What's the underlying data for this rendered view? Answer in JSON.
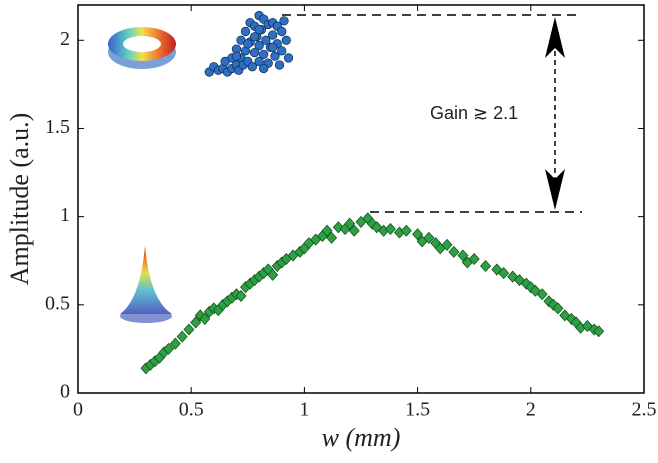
{
  "chart_data": {
    "type": "scatter",
    "xlabel": "w (mm)",
    "ylabel": "Amplitude (a.u.)",
    "annotation": "Gain ≳ 2.1",
    "xlim": [
      0,
      2.5
    ],
    "ylim": [
      0,
      2.2
    ],
    "xticks": [
      0,
      0.5,
      1,
      1.5,
      2,
      2.5
    ],
    "yticks": [
      0,
      0.5,
      1,
      1.5,
      2
    ],
    "grid": false,
    "series": [
      {
        "marker": "circle",
        "color": "#2e6fc0",
        "x": [
          0.58,
          0.6,
          0.62,
          0.64,
          0.65,
          0.66,
          0.68,
          0.68,
          0.7,
          0.7,
          0.71,
          0.72,
          0.72,
          0.73,
          0.74,
          0.74,
          0.75,
          0.76,
          0.76,
          0.77,
          0.78,
          0.78,
          0.79,
          0.8,
          0.8,
          0.8,
          0.81,
          0.82,
          0.82,
          0.83,
          0.84,
          0.84,
          0.85,
          0.86,
          0.86,
          0.87,
          0.88,
          0.88,
          0.89,
          0.9,
          0.9,
          0.91,
          0.92,
          0.93,
          0.78,
          0.82,
          0.75,
          0.86,
          0.7,
          0.8
        ],
        "values": [
          1.82,
          1.85,
          1.83,
          1.84,
          1.88,
          1.82,
          1.9,
          1.84,
          1.95,
          1.86,
          1.83,
          2.0,
          1.9,
          1.86,
          2.05,
          1.94,
          1.88,
          2.1,
          1.99,
          1.85,
          2.08,
          1.93,
          2.02,
          2.14,
          1.97,
          1.88,
          2.06,
          2.12,
          1.92,
          2.0,
          2.09,
          1.87,
          1.96,
          2.1,
          2.03,
          1.91,
          2.08,
          1.98,
          1.86,
          2.05,
          1.94,
          2.11,
          2.0,
          1.9,
          2.02,
          1.84,
          1.98,
          1.96,
          1.91,
          2.06
        ]
      },
      {
        "marker": "diamond",
        "color": "#2ea043",
        "x": [
          0.3,
          0.32,
          0.34,
          0.36,
          0.38,
          0.4,
          0.43,
          0.46,
          0.49,
          0.52,
          0.54,
          0.56,
          0.58,
          0.6,
          0.62,
          0.64,
          0.66,
          0.68,
          0.7,
          0.72,
          0.74,
          0.76,
          0.78,
          0.8,
          0.82,
          0.84,
          0.86,
          0.88,
          0.9,
          0.92,
          0.95,
          0.98,
          1.0,
          1.02,
          1.05,
          1.08,
          1.1,
          1.12,
          1.15,
          1.18,
          1.2,
          1.22,
          1.25,
          1.28,
          1.3,
          1.32,
          1.35,
          1.38,
          1.42,
          1.45,
          1.5,
          1.52,
          1.55,
          1.58,
          1.6,
          1.63,
          1.66,
          1.7,
          1.72,
          1.75,
          1.8,
          1.85,
          1.88,
          1.92,
          1.95,
          1.98,
          2.0,
          2.02,
          2.05,
          2.08,
          2.1,
          2.12,
          2.15,
          2.18,
          2.2,
          2.22,
          2.25,
          2.28,
          2.3
        ],
        "values": [
          0.14,
          0.16,
          0.18,
          0.2,
          0.23,
          0.25,
          0.28,
          0.32,
          0.36,
          0.4,
          0.44,
          0.42,
          0.46,
          0.48,
          0.47,
          0.5,
          0.52,
          0.54,
          0.56,
          0.55,
          0.6,
          0.62,
          0.64,
          0.66,
          0.68,
          0.7,
          0.67,
          0.72,
          0.74,
          0.76,
          0.78,
          0.8,
          0.82,
          0.85,
          0.87,
          0.89,
          0.92,
          0.88,
          0.94,
          0.93,
          0.96,
          0.92,
          0.97,
          0.99,
          0.96,
          0.94,
          0.92,
          0.93,
          0.91,
          0.92,
          0.9,
          0.86,
          0.88,
          0.85,
          0.82,
          0.84,
          0.8,
          0.78,
          0.74,
          0.76,
          0.72,
          0.7,
          0.68,
          0.66,
          0.64,
          0.62,
          0.6,
          0.58,
          0.56,
          0.52,
          0.5,
          0.48,
          0.44,
          0.42,
          0.4,
          0.37,
          0.38,
          0.36,
          0.35
        ]
      }
    ]
  }
}
